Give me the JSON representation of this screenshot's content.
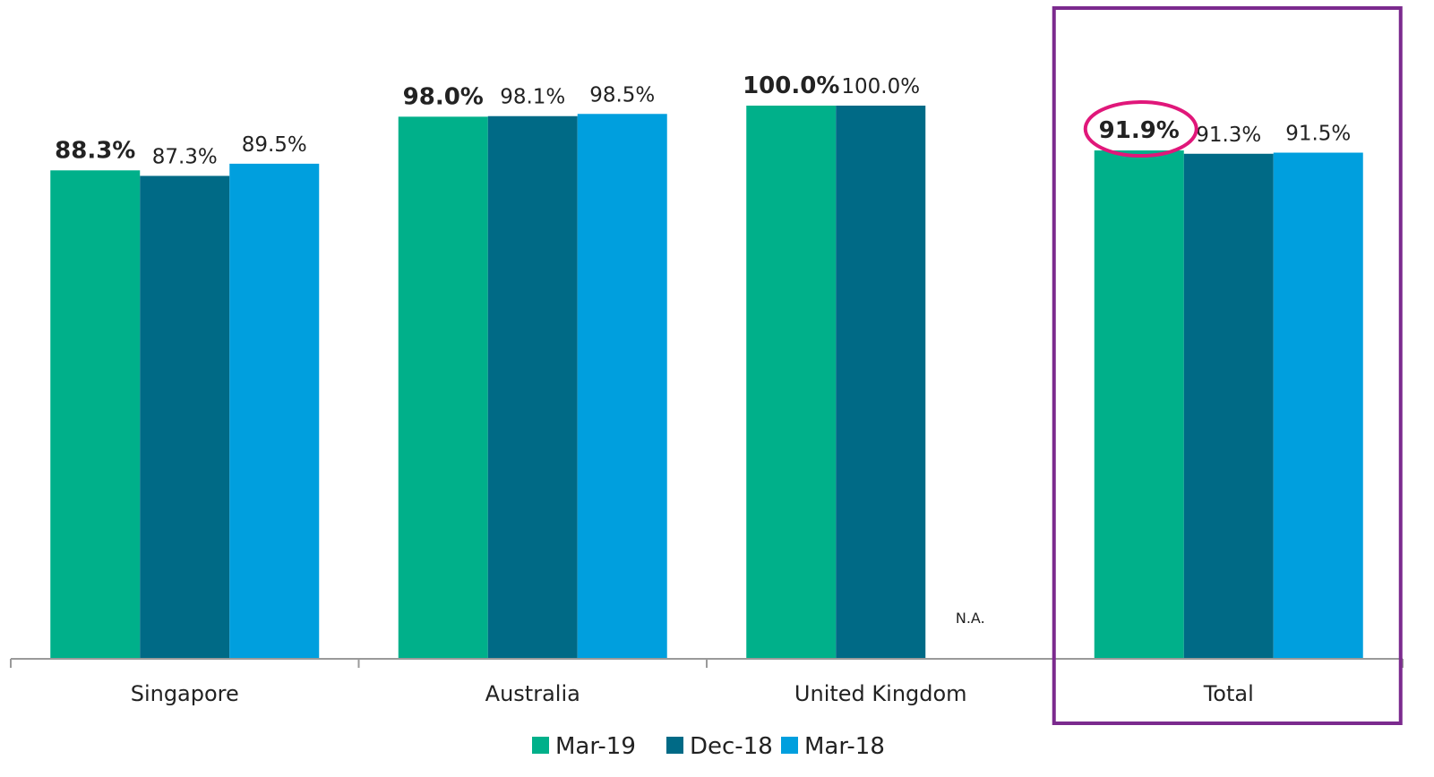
{
  "chart_data": {
    "type": "bar",
    "categories": [
      "Singapore",
      "Australia",
      "United Kingdom",
      "Total"
    ],
    "series": [
      {
        "name": "Mar-19",
        "color": "#00B08A",
        "values": [
          88.3,
          98.0,
          100.0,
          91.9
        ],
        "labels": [
          "88.3%",
          "98.0%",
          "100.0%",
          "91.9%"
        ],
        "label_bold": true
      },
      {
        "name": "Dec-18",
        "color": "#006A86",
        "values": [
          87.3,
          98.1,
          100.0,
          91.3
        ],
        "labels": [
          "87.3%",
          "98.1%",
          "100.0%",
          "91.3%"
        ],
        "label_bold": false
      },
      {
        "name": "Mar-18",
        "color": "#009FDE",
        "values": [
          89.5,
          98.5,
          null,
          91.5
        ],
        "labels": [
          "89.5%",
          "98.5%",
          "N.A.",
          "91.5%"
        ],
        "label_bold": false
      }
    ],
    "ylim": [
      0,
      100
    ],
    "grid": false,
    "legend": "bottom",
    "highlight": {
      "category": "Total",
      "box_color": "#7B2A8E",
      "circled_label": "91.9%",
      "circle_color": "#E0177A"
    }
  }
}
